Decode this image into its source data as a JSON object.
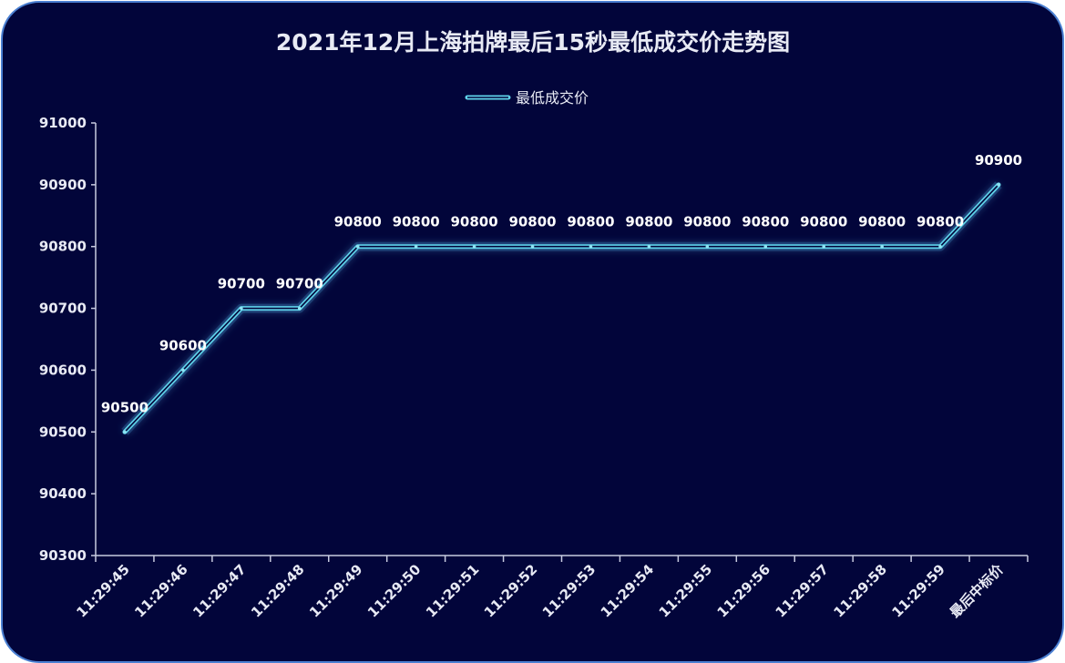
{
  "chart_data": {
    "type": "line",
    "title": "2021年12月上海拍牌最后15秒最低成交价走势图",
    "legend": "top-center",
    "series": [
      {
        "name": "最低成交价",
        "values": [
          90500,
          90600,
          90700,
          90700,
          90800,
          90800,
          90800,
          90800,
          90800,
          90800,
          90800,
          90800,
          90800,
          90800,
          90800,
          90900
        ]
      }
    ],
    "categories": [
      "11:29:45",
      "11:29:46",
      "11:29:47",
      "11:29:48",
      "11:29:49",
      "11:29:50",
      "11:29:51",
      "11:29:52",
      "11:29:53",
      "11:29:54",
      "11:29:55",
      "11:29:56",
      "11:29:57",
      "11:29:58",
      "11:29:59",
      "最后中标价"
    ],
    "ylim": [
      90300,
      91000
    ],
    "yticks": [
      90300,
      90400,
      90500,
      90600,
      90700,
      90800,
      90900,
      91000
    ],
    "data_labels": true,
    "grid": false,
    "colors": {
      "line": "#5fd3ea",
      "background": "#02053a",
      "frame_border": "#4a7fd1",
      "axis": "#c8cbe0"
    }
  }
}
